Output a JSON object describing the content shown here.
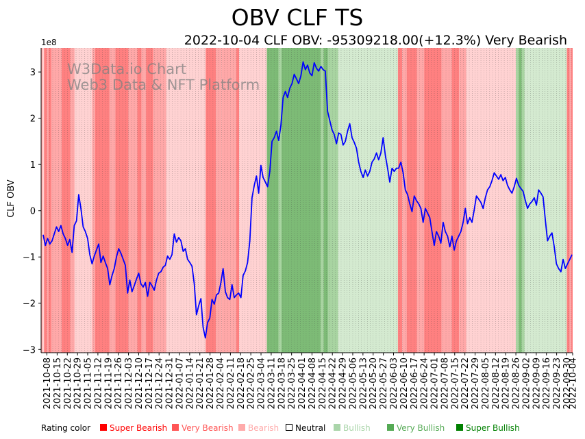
{
  "chart_data": {
    "type": "line",
    "title": "OBV CLF TS",
    "subtitle": "2022-10-04 CLF OBV: -95309218.00(+12.3%) Very Bearish",
    "ylabel": "CLF OBV",
    "xlabel": "",
    "y_multiplier_label": "1e8",
    "ylim": [
      -3.07,
      3.52
    ],
    "yticks": [
      -3,
      -2,
      -1,
      0,
      1,
      2,
      3
    ],
    "ytick_labels": [
      "−3",
      "−2",
      "−1",
      "0",
      "1",
      "2",
      "3"
    ],
    "x_start": "2021-10-04",
    "x_end": "2022-10-04",
    "xtick_labels": [
      "2021-10-08",
      "2021-10-15",
      "2021-10-22",
      "2021-10-29",
      "2021-11-05",
      "2021-11-12",
      "2021-11-19",
      "2021-11-26",
      "2021-12-03",
      "2021-12-10",
      "2021-12-17",
      "2021-12-24",
      "2021-12-31",
      "2022-01-07",
      "2022-01-14",
      "2022-01-21",
      "2022-01-28",
      "2022-02-04",
      "2022-02-11",
      "2022-02-18",
      "2022-02-25",
      "2022-03-04",
      "2022-03-11",
      "2022-03-18",
      "2022-03-25",
      "2022-04-01",
      "2022-04-08",
      "2022-04-15",
      "2022-04-22",
      "2022-04-29",
      "2022-05-06",
      "2022-05-13",
      "2022-05-20",
      "2022-05-27",
      "2022-06-03",
      "2022-06-10",
      "2022-06-17",
      "2022-06-24",
      "2022-07-01",
      "2022-07-08",
      "2022-07-15",
      "2022-07-22",
      "2022-07-29",
      "2022-08-05",
      "2022-08-12",
      "2022-08-19",
      "2022-08-26",
      "2022-09-02",
      "2022-09-09",
      "2022-09-16",
      "2022-09-23",
      "2022-09-30",
      "2022-10-04"
    ],
    "series": [
      {
        "name": "CLF OBV (1e8)",
        "color": "#0000ff",
        "values": [
          -0.52,
          -0.75,
          -0.6,
          -0.72,
          -0.65,
          -0.5,
          -0.35,
          -0.45,
          -0.32,
          -0.5,
          -0.6,
          -0.75,
          -0.62,
          -0.9,
          -0.32,
          -0.22,
          0.35,
          0.05,
          -0.35,
          -0.45,
          -0.6,
          -0.95,
          -1.15,
          -0.98,
          -0.85,
          -0.72,
          -1.12,
          -0.98,
          -1.12,
          -1.25,
          -1.6,
          -1.4,
          -1.25,
          -1.0,
          -0.82,
          -0.92,
          -1.05,
          -1.18,
          -1.78,
          -1.5,
          -1.75,
          -1.62,
          -1.48,
          -1.35,
          -1.58,
          -1.65,
          -1.55,
          -1.85,
          -1.55,
          -1.62,
          -1.72,
          -1.5,
          -1.35,
          -1.32,
          -1.22,
          -1.18,
          -0.98,
          -1.05,
          -0.95,
          -0.5,
          -0.68,
          -0.58,
          -0.65,
          -0.88,
          -0.82,
          -1.05,
          -1.12,
          -1.2,
          -1.58,
          -2.25,
          -2.05,
          -1.9,
          -2.52,
          -2.75,
          -2.42,
          -2.32,
          -1.92,
          -2.02,
          -1.82,
          -1.78,
          -1.55,
          -1.25,
          -1.75,
          -1.88,
          -1.92,
          -1.6,
          -1.88,
          -1.82,
          -1.78,
          -1.88,
          -1.4,
          -1.3,
          -1.12,
          -0.65,
          0.28,
          0.55,
          0.75,
          0.38,
          0.98,
          0.72,
          0.62,
          0.52,
          0.85,
          1.5,
          1.58,
          1.72,
          1.52,
          1.85,
          2.45,
          2.58,
          2.45,
          2.65,
          2.75,
          2.95,
          2.85,
          2.75,
          2.92,
          3.22,
          3.05,
          3.15,
          2.98,
          2.92,
          3.2,
          3.08,
          3.02,
          3.12,
          3.05,
          3.02,
          2.15,
          1.95,
          1.75,
          1.65,
          1.45,
          1.68,
          1.65,
          1.42,
          1.5,
          1.72,
          1.88,
          1.58,
          1.48,
          1.35,
          1.05,
          0.85,
          0.72,
          0.88,
          0.75,
          0.85,
          1.05,
          1.12,
          1.25,
          1.1,
          1.25,
          1.58,
          1.2,
          0.92,
          0.62,
          0.92,
          0.85,
          0.92,
          0.92,
          1.05,
          0.82,
          0.45,
          0.35,
          0.15,
          -0.02,
          0.32,
          0.22,
          0.15,
          0.05,
          -0.25,
          0.05,
          -0.05,
          -0.15,
          -0.45,
          -0.75,
          -0.45,
          -0.55,
          -0.7,
          -0.25,
          -0.45,
          -0.55,
          -0.78,
          -0.55,
          -0.85,
          -0.65,
          -0.55,
          -0.45,
          -0.25,
          0.05,
          -0.28,
          -0.15,
          -0.25,
          0.02,
          0.32,
          0.25,
          0.18,
          0.05,
          0.28,
          0.45,
          0.52,
          0.65,
          0.82,
          0.75,
          0.68,
          0.78,
          0.65,
          0.72,
          0.55,
          0.45,
          0.38,
          0.52,
          0.7,
          0.55,
          0.48,
          0.42,
          0.22,
          0.05,
          0.15,
          0.2,
          0.28,
          0.12,
          0.45,
          0.38,
          0.3,
          -0.2,
          -0.65,
          -0.55,
          -0.48,
          -0.78,
          -1.15,
          -1.25,
          -1.32,
          -1.05,
          -1.25,
          -1.15,
          -1.05,
          -0.95
        ]
      }
    ],
    "rating_bands": [
      {
        "start": "2021-10-04",
        "end": "2021-10-05",
        "rating": "Very Bearish"
      },
      {
        "start": "2021-10-05",
        "end": "2021-10-06",
        "rating": "Bearish"
      },
      {
        "start": "2021-10-06",
        "end": "2021-10-08",
        "rating": "Super Bearish"
      },
      {
        "start": "2021-10-08",
        "end": "2021-10-09",
        "rating": "Very Bearish"
      },
      {
        "start": "2021-10-09",
        "end": "2021-10-11",
        "rating": "Super Bearish"
      },
      {
        "start": "2021-10-11",
        "end": "2021-10-18",
        "rating": "Very Bearish"
      },
      {
        "start": "2021-10-18",
        "end": "2021-10-24",
        "rating": "Super Bearish"
      },
      {
        "start": "2021-10-24",
        "end": "2021-10-27",
        "rating": "Very Bearish"
      },
      {
        "start": "2021-10-27",
        "end": "2021-11-08",
        "rating": "Bearish"
      },
      {
        "start": "2021-11-08",
        "end": "2021-11-10",
        "rating": "Very Bearish"
      },
      {
        "start": "2021-11-10",
        "end": "2021-11-20",
        "rating": "Super Bearish"
      },
      {
        "start": "2021-11-20",
        "end": "2021-11-24",
        "rating": "Very Bearish"
      },
      {
        "start": "2021-11-24",
        "end": "2021-12-03",
        "rating": "Super Bearish"
      },
      {
        "start": "2021-12-03",
        "end": "2021-12-09",
        "rating": "Very Bearish"
      },
      {
        "start": "2021-12-09",
        "end": "2021-12-12",
        "rating": "Super Bearish"
      },
      {
        "start": "2021-12-12",
        "end": "2021-12-15",
        "rating": "Very Bearish"
      },
      {
        "start": "2021-12-15",
        "end": "2021-12-20",
        "rating": "Super Bearish"
      },
      {
        "start": "2021-12-20",
        "end": "2021-12-29",
        "rating": "Very Bearish"
      },
      {
        "start": "2021-12-29",
        "end": "2022-01-25",
        "rating": "Bearish"
      },
      {
        "start": "2022-01-25",
        "end": "2022-02-01",
        "rating": "Super Bearish"
      },
      {
        "start": "2022-02-01",
        "end": "2022-02-05",
        "rating": "Very Bearish"
      },
      {
        "start": "2022-02-05",
        "end": "2022-02-15",
        "rating": "Very Bearish"
      },
      {
        "start": "2022-02-15",
        "end": "2022-02-17",
        "rating": "Super Bearish"
      },
      {
        "start": "2022-02-17",
        "end": "2022-03-08",
        "rating": "Bearish"
      },
      {
        "start": "2022-03-08",
        "end": "2022-03-16",
        "rating": "Very Bullish"
      },
      {
        "start": "2022-03-16",
        "end": "2022-03-18",
        "rating": "Bullish"
      },
      {
        "start": "2022-03-18",
        "end": "2022-04-14",
        "rating": "Very Bullish"
      },
      {
        "start": "2022-04-14",
        "end": "2022-04-16",
        "rating": "Bullish"
      },
      {
        "start": "2022-04-16",
        "end": "2022-04-19",
        "rating": "Very Bullish"
      },
      {
        "start": "2022-04-19",
        "end": "2022-04-26",
        "rating": "Bullish"
      },
      {
        "start": "2022-04-26",
        "end": "2022-06-06",
        "rating": "Neutral Bullish"
      },
      {
        "start": "2022-06-06",
        "end": "2022-06-09",
        "rating": "Super Bearish"
      },
      {
        "start": "2022-06-09",
        "end": "2022-06-12",
        "rating": "Very Bearish"
      },
      {
        "start": "2022-06-12",
        "end": "2022-06-19",
        "rating": "Super Bearish"
      },
      {
        "start": "2022-06-19",
        "end": "2022-06-24",
        "rating": "Very Bearish"
      },
      {
        "start": "2022-06-24",
        "end": "2022-07-06",
        "rating": "Super Bearish"
      },
      {
        "start": "2022-07-06",
        "end": "2022-07-13",
        "rating": "Very Bearish"
      },
      {
        "start": "2022-07-13",
        "end": "2022-07-18",
        "rating": "Super Bearish"
      },
      {
        "start": "2022-07-18",
        "end": "2022-07-23",
        "rating": "Very Bearish"
      },
      {
        "start": "2022-07-23",
        "end": "2022-08-26",
        "rating": "Bearish"
      },
      {
        "start": "2022-08-26",
        "end": "2022-08-28",
        "rating": "Bullish"
      },
      {
        "start": "2022-08-28",
        "end": "2022-08-30",
        "rating": "Very Bullish"
      },
      {
        "start": "2022-08-30",
        "end": "2022-09-01",
        "rating": "Bullish"
      },
      {
        "start": "2022-09-01",
        "end": "2022-09-30",
        "rating": "Neutral Bullish"
      },
      {
        "start": "2022-09-30",
        "end": "2022-10-02",
        "rating": "Super Bearish"
      },
      {
        "start": "2022-10-02",
        "end": "2022-10-03",
        "rating": "Very Bearish"
      },
      {
        "start": "2022-10-03",
        "end": "2022-10-04",
        "rating": "Super Bearish"
      }
    ],
    "rating_colors": {
      "Super Bearish": "#ff8080",
      "Very Bearish": "#ffa8a8",
      "Bearish": "#ffd2d2",
      "Neutral Bullish": "#d4ead0",
      "Bullish": "#a8d4a1",
      "Very Bullish": "#7dbb76"
    },
    "watermark": [
      "W3Data.io Chart",
      "Web3 Data & NFT Platform"
    ],
    "legend": {
      "label": "Rating color",
      "items": [
        {
          "name": "Super Bearish",
          "color": "#ff0000"
        },
        {
          "name": "Very Bearish",
          "color": "#ff5555"
        },
        {
          "name": "Bearish",
          "color": "#ffaaaa"
        },
        {
          "name": "Neutral",
          "color": "#000000"
        },
        {
          "name": "Bullish",
          "color": "#aad5aa"
        },
        {
          "name": "Very Bullish",
          "color": "#55aa55"
        },
        {
          "name": "Super Bullish",
          "color": "#008000"
        }
      ]
    }
  }
}
